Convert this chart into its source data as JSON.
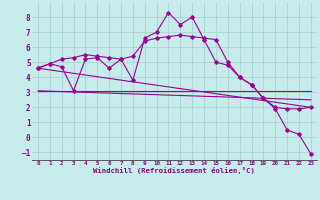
{
  "xlabel": "Windchill (Refroidissement éolien,°C)",
  "background_color": "#c8ecec",
  "grid_color": "#aad4d4",
  "line_color": "#990099",
  "ylim": [
    -1.5,
    9.0
  ],
  "xlim": [
    -0.5,
    23.5
  ],
  "yticks": [
    -1,
    0,
    1,
    2,
    3,
    4,
    5,
    6,
    7,
    8
  ],
  "xticks": [
    0,
    1,
    2,
    3,
    4,
    5,
    6,
    7,
    8,
    9,
    10,
    11,
    12,
    13,
    14,
    15,
    16,
    17,
    18,
    19,
    20,
    21,
    22,
    23
  ],
  "curve1_x": [
    0,
    1,
    2,
    3,
    4,
    5,
    6,
    7,
    8,
    9,
    10,
    11,
    12,
    13,
    14,
    15,
    16,
    17,
    18,
    19,
    20,
    21,
    22,
    23
  ],
  "curve1_y": [
    4.6,
    4.9,
    5.2,
    5.3,
    5.5,
    5.4,
    5.3,
    5.2,
    5.4,
    6.4,
    6.6,
    6.7,
    6.8,
    6.7,
    6.6,
    6.5,
    5.0,
    4.0,
    3.5,
    2.6,
    2.0,
    1.9,
    1.9,
    2.0
  ],
  "curve2_x": [
    0,
    1,
    2,
    3,
    4,
    5,
    6,
    7,
    8,
    9,
    10,
    11,
    12,
    13,
    14,
    15,
    16,
    17,
    18,
    19,
    20,
    21,
    22,
    23
  ],
  "curve2_y": [
    4.6,
    4.9,
    4.7,
    3.1,
    5.2,
    5.3,
    4.6,
    5.2,
    3.8,
    6.6,
    7.0,
    8.3,
    7.5,
    8.0,
    6.5,
    5.0,
    4.8,
    4.0,
    3.5,
    2.6,
    1.9,
    0.5,
    0.2,
    -1.1
  ],
  "line1_x": [
    0,
    23
  ],
  "line1_y": [
    3.1,
    3.1
  ],
  "line2_x": [
    0,
    23
  ],
  "line2_y": [
    3.1,
    2.5
  ],
  "line3_x": [
    0,
    23
  ],
  "line3_y": [
    4.6,
    2.0
  ]
}
